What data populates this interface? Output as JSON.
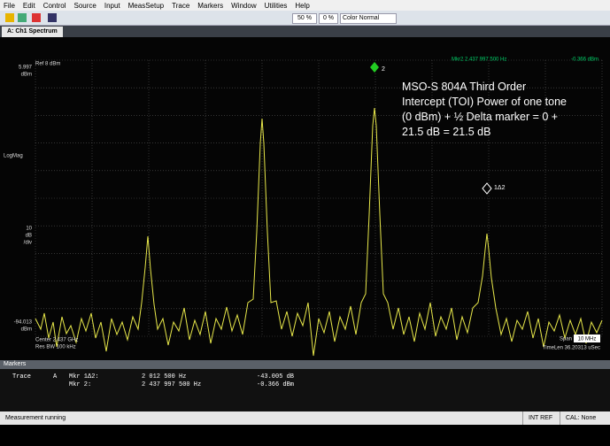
{
  "menu": [
    "File",
    "Edit",
    "Control",
    "Source",
    "Input",
    "MeasSetup",
    "Trace",
    "Markers",
    "Window",
    "Utilities",
    "Help"
  ],
  "toolbar": {
    "zoom": "50 %",
    "offset": "0 %",
    "color": "Color Normal"
  },
  "tab": "A: Ch1 Spectrum",
  "plot": {
    "ref": "Ref 8 dBm",
    "marker_readout": "Mkr2  2.437 997 500 Hz",
    "marker_value": "-0.366 dBm",
    "top_value": "5.997",
    "top_unit": "dBm",
    "format": "LogMag",
    "scale_value": "10",
    "scale_unit": "dB",
    "scale_div": "/div",
    "bottom_value": "-94.013",
    "bottom_unit": "dBm",
    "annotation": "MSO-S 804A Third Order Intercept (TOI) Power of one tone (0 dBm) + ½ Delta marker = 0 + 21.5 dB = 21.5 dB",
    "marker_2": "2",
    "marker_1d2": "1Δ2",
    "center": "Center 2.437 GHz",
    "res_bw": "Res BW 100 kHz",
    "span_label": "Span",
    "span_value": "10 MHz",
    "timelen": "TimeLen 36.20313 uSec"
  },
  "markers_panel": {
    "title": "Markers",
    "rows": [
      [
        "Trace",
        "A",
        "Mkr 1Δ2:",
        "2 012 500 Hz",
        "-43.005 dB"
      ],
      [
        "",
        "",
        "Mkr   2:",
        "2 437 997 500 Hz",
        "-0.366 dBm"
      ]
    ]
  },
  "status": {
    "message": "Measurement running",
    "ref": "INT REF",
    "cal": "CAL: None"
  }
}
